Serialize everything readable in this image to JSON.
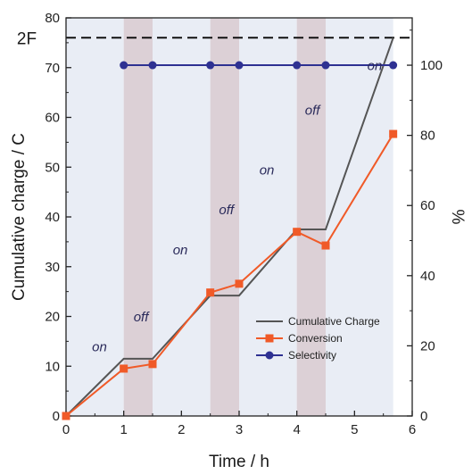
{
  "chart_data": {
    "type": "line",
    "xlabel": "Time / h",
    "ylabel_left": "Cumulative charge / C",
    "ylabel_right": "%",
    "xlim": [
      0,
      6
    ],
    "ylim_left": [
      0,
      80
    ],
    "ylim_right": [
      0,
      113.5
    ],
    "x_ticks": [
      0,
      1,
      2,
      3,
      4,
      5,
      6
    ],
    "y_left_ticks": [
      0,
      10,
      20,
      30,
      40,
      50,
      60,
      70,
      80
    ],
    "y_right_ticks": [
      0,
      20,
      40,
      60,
      80,
      100
    ],
    "legend_position": "lower-right",
    "reference_line": {
      "label": "2F",
      "y": 76,
      "axis": "left",
      "style": "dashed"
    },
    "background_regions": [
      {
        "label": "on",
        "x": [
          0,
          1
        ],
        "color": "#e9edf5"
      },
      {
        "label": "off",
        "x": [
          1,
          1.5
        ],
        "color": "#dcd0d6"
      },
      {
        "label": "on",
        "x": [
          1.5,
          2.5
        ],
        "color": "#e9edf5"
      },
      {
        "label": "off",
        "x": [
          2.5,
          3
        ],
        "color": "#dcd0d6"
      },
      {
        "label": "on",
        "x": [
          3,
          4
        ],
        "color": "#e9edf5"
      },
      {
        "label": "off",
        "x": [
          4,
          4.5
        ],
        "color": "#dcd0d6"
      },
      {
        "label": "on",
        "x": [
          4.5,
          5.67
        ],
        "color": "#e9edf5"
      }
    ],
    "state_labels": [
      {
        "text": "on",
        "x": 0.58,
        "y": 13
      },
      {
        "text": "off",
        "x": 1.3,
        "y": 19
      },
      {
        "text": "on",
        "x": 1.98,
        "y": 32.5
      },
      {
        "text": "off",
        "x": 2.78,
        "y": 40.5
      },
      {
        "text": "on",
        "x": 3.48,
        "y": 48.5
      },
      {
        "text": "off",
        "x": 4.27,
        "y": 60.5
      },
      {
        "text": "on",
        "x": 5.35,
        "y": 69.5
      }
    ],
    "series": [
      {
        "name": "Cumulative Charge",
        "axis": "left",
        "color": "#555555",
        "marker": "none",
        "x": [
          0,
          1,
          1.5,
          2.5,
          3,
          4,
          4.5,
          5.67
        ],
        "y": [
          0,
          11.5,
          11.5,
          24.2,
          24.2,
          37.5,
          37.5,
          76
        ]
      },
      {
        "name": "Conversion",
        "axis": "right",
        "color": "#f05a28",
        "marker": "square",
        "x": [
          0,
          1,
          1.5,
          2.5,
          3,
          4,
          4.5,
          5.67
        ],
        "y": [
          0,
          13.5,
          14.8,
          35.2,
          37.7,
          52.5,
          48.6,
          80.4
        ]
      },
      {
        "name": "Selectivity",
        "axis": "right",
        "color": "#2e3192",
        "marker": "circle",
        "x": [
          1,
          1.5,
          2.5,
          3,
          4,
          4.5,
          5.67
        ],
        "y": [
          100,
          100,
          100,
          100,
          100,
          100,
          100
        ]
      }
    ]
  }
}
